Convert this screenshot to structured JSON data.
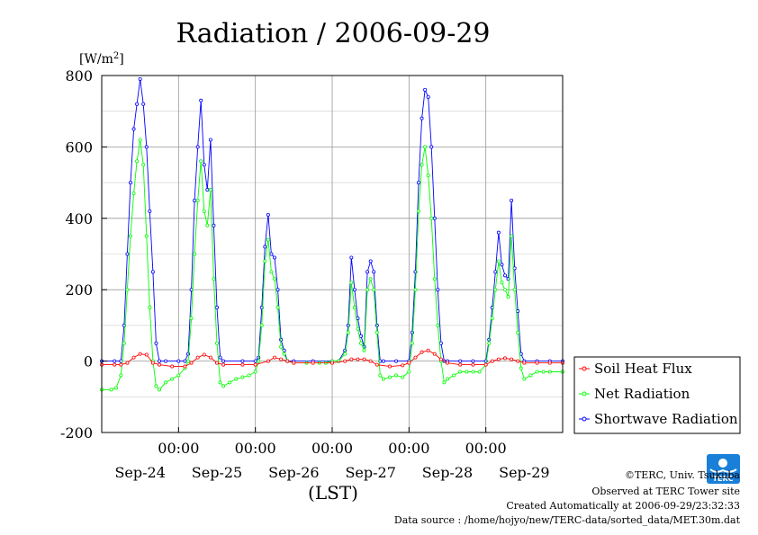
{
  "chart_data": {
    "type": "line",
    "title": "Radiation / 2006-09-29",
    "ylabel_unit_prefix": "[W/m",
    "ylabel_unit_sup": "2",
    "ylabel_unit_suffix": "]",
    "xlabel": "(LST)",
    "ylim": [
      -200,
      800
    ],
    "yticks": [
      -200,
      0,
      200,
      400,
      600,
      800
    ],
    "xlim": [
      0,
      144
    ],
    "xticks_hours": [
      24,
      48,
      72,
      96,
      120
    ],
    "xtick_time_label": "00:00",
    "date_labels": [
      {
        "x": 12,
        "label": "Sep-24"
      },
      {
        "x": 36,
        "label": "Sep-25"
      },
      {
        "x": 60,
        "label": "Sep-26"
      },
      {
        "x": 84,
        "label": "Sep-27"
      },
      {
        "x": 108,
        "label": "Sep-28"
      },
      {
        "x": 132,
        "label": "Sep-29"
      }
    ],
    "grid": true,
    "legend_position": "right",
    "series": [
      {
        "name": "Soil Heat Flux",
        "color": "#ff0000",
        "points": [
          [
            0,
            -10
          ],
          [
            4,
            -10
          ],
          [
            6,
            -10
          ],
          [
            8,
            -5
          ],
          [
            10,
            10
          ],
          [
            12,
            20
          ],
          [
            14,
            18
          ],
          [
            16,
            -5
          ],
          [
            18,
            -10
          ],
          [
            22,
            -15
          ],
          [
            26,
            -15
          ],
          [
            28,
            -5
          ],
          [
            30,
            10
          ],
          [
            32,
            18
          ],
          [
            34,
            10
          ],
          [
            36,
            -5
          ],
          [
            38,
            -10
          ],
          [
            44,
            -10
          ],
          [
            48,
            -10
          ],
          [
            52,
            0
          ],
          [
            54,
            10
          ],
          [
            56,
            5
          ],
          [
            58,
            0
          ],
          [
            60,
            -5
          ],
          [
            66,
            -5
          ],
          [
            72,
            -5
          ],
          [
            76,
            0
          ],
          [
            78,
            5
          ],
          [
            80,
            5
          ],
          [
            82,
            5
          ],
          [
            84,
            0
          ],
          [
            86,
            -10
          ],
          [
            90,
            -15
          ],
          [
            94,
            -12
          ],
          [
            96,
            -5
          ],
          [
            98,
            10
          ],
          [
            100,
            25
          ],
          [
            102,
            30
          ],
          [
            104,
            20
          ],
          [
            106,
            5
          ],
          [
            108,
            -5
          ],
          [
            112,
            -10
          ],
          [
            116,
            -10
          ],
          [
            120,
            -10
          ],
          [
            122,
            0
          ],
          [
            124,
            5
          ],
          [
            126,
            8
          ],
          [
            128,
            5
          ],
          [
            130,
            0
          ],
          [
            132,
            -5
          ],
          [
            136,
            -5
          ],
          [
            140,
            -5
          ],
          [
            144,
            -5
          ]
        ]
      },
      {
        "name": "Net Radiation",
        "color": "#00ff00",
        "points": [
          [
            0,
            -80
          ],
          [
            3,
            -80
          ],
          [
            4.5,
            -75
          ],
          [
            6,
            -40
          ],
          [
            7,
            50
          ],
          [
            8,
            200
          ],
          [
            9,
            350
          ],
          [
            10,
            470
          ],
          [
            11,
            560
          ],
          [
            12,
            620
          ],
          [
            13,
            550
          ],
          [
            14,
            350
          ],
          [
            15,
            150
          ],
          [
            16,
            0
          ],
          [
            17,
            -70
          ],
          [
            18,
            -80
          ],
          [
            20,
            -60
          ],
          [
            22,
            -50
          ],
          [
            24,
            -40
          ],
          [
            26,
            -20
          ],
          [
            27,
            0
          ],
          [
            28,
            120
          ],
          [
            29,
            300
          ],
          [
            30,
            450
          ],
          [
            31,
            560
          ],
          [
            32,
            420
          ],
          [
            33,
            380
          ],
          [
            34,
            480
          ],
          [
            35,
            230
          ],
          [
            36,
            50
          ],
          [
            37,
            -60
          ],
          [
            38,
            -70
          ],
          [
            40,
            -60
          ],
          [
            42,
            -50
          ],
          [
            44,
            -45
          ],
          [
            46,
            -40
          ],
          [
            48,
            -30
          ],
          [
            49,
            0
          ],
          [
            50,
            100
          ],
          [
            51,
            280
          ],
          [
            52,
            340
          ],
          [
            53,
            250
          ],
          [
            54,
            230
          ],
          [
            55,
            150
          ],
          [
            56,
            40
          ],
          [
            57,
            20
          ],
          [
            58,
            0
          ],
          [
            60,
            -5
          ],
          [
            64,
            -5
          ],
          [
            68,
            -5
          ],
          [
            70,
            -5
          ],
          [
            72,
            0
          ],
          [
            74,
            0
          ],
          [
            76,
            20
          ],
          [
            77,
            80
          ],
          [
            78,
            220
          ],
          [
            79,
            150
          ],
          [
            80,
            90
          ],
          [
            81,
            50
          ],
          [
            82,
            30
          ],
          [
            83,
            200
          ],
          [
            84,
            230
          ],
          [
            85,
            200
          ],
          [
            86,
            80
          ],
          [
            87,
            -40
          ],
          [
            88,
            -50
          ],
          [
            90,
            -45
          ],
          [
            92,
            -40
          ],
          [
            94,
            -45
          ],
          [
            96,
            -30
          ],
          [
            97,
            50
          ],
          [
            98,
            200
          ],
          [
            99,
            420
          ],
          [
            100,
            550
          ],
          [
            101,
            600
          ],
          [
            102,
            520
          ],
          [
            103,
            400
          ],
          [
            104,
            230
          ],
          [
            105,
            100
          ],
          [
            106,
            0
          ],
          [
            107,
            -60
          ],
          [
            108,
            -50
          ],
          [
            110,
            -40
          ],
          [
            112,
            -30
          ],
          [
            114,
            -30
          ],
          [
            116,
            -30
          ],
          [
            118,
            -30
          ],
          [
            120,
            -10
          ],
          [
            121,
            50
          ],
          [
            122,
            120
          ],
          [
            123,
            200
          ],
          [
            124,
            280
          ],
          [
            125,
            220
          ],
          [
            126,
            200
          ],
          [
            127,
            180
          ],
          [
            128,
            350
          ],
          [
            129,
            200
          ],
          [
            130,
            80
          ],
          [
            131,
            -20
          ],
          [
            132,
            -50
          ],
          [
            134,
            -40
          ],
          [
            136,
            -30
          ],
          [
            138,
            -30
          ],
          [
            140,
            -30
          ],
          [
            144,
            -30
          ]
        ]
      },
      {
        "name": "Shortwave Radiation",
        "color": "#0000ff",
        "points": [
          [
            0,
            0
          ],
          [
            4,
            0
          ],
          [
            6,
            0
          ],
          [
            7,
            100
          ],
          [
            8,
            300
          ],
          [
            9,
            500
          ],
          [
            10,
            650
          ],
          [
            11,
            720
          ],
          [
            12,
            790
          ],
          [
            13,
            720
          ],
          [
            14,
            600
          ],
          [
            15,
            420
          ],
          [
            16,
            250
          ],
          [
            17,
            50
          ],
          [
            18,
            0
          ],
          [
            20,
            0
          ],
          [
            24,
            0
          ],
          [
            26,
            0
          ],
          [
            27,
            20
          ],
          [
            28,
            200
          ],
          [
            29,
            450
          ],
          [
            30,
            600
          ],
          [
            31,
            730
          ],
          [
            32,
            550
          ],
          [
            33,
            480
          ],
          [
            34,
            620
          ],
          [
            35,
            380
          ],
          [
            36,
            150
          ],
          [
            37,
            10
          ],
          [
            38,
            0
          ],
          [
            44,
            0
          ],
          [
            48,
            0
          ],
          [
            49,
            10
          ],
          [
            50,
            150
          ],
          [
            51,
            320
          ],
          [
            52,
            410
          ],
          [
            53,
            300
          ],
          [
            54,
            290
          ],
          [
            55,
            200
          ],
          [
            56,
            60
          ],
          [
            57,
            30
          ],
          [
            58,
            0
          ],
          [
            60,
            0
          ],
          [
            66,
            0
          ],
          [
            72,
            0
          ],
          [
            74,
            0
          ],
          [
            76,
            30
          ],
          [
            77,
            100
          ],
          [
            78,
            290
          ],
          [
            79,
            200
          ],
          [
            80,
            120
          ],
          [
            81,
            70
          ],
          [
            82,
            40
          ],
          [
            83,
            250
          ],
          [
            84,
            280
          ],
          [
            85,
            250
          ],
          [
            86,
            100
          ],
          [
            87,
            0
          ],
          [
            88,
            0
          ],
          [
            92,
            0
          ],
          [
            96,
            0
          ],
          [
            97,
            80
          ],
          [
            98,
            250
          ],
          [
            99,
            500
          ],
          [
            100,
            680
          ],
          [
            101,
            760
          ],
          [
            102,
            740
          ],
          [
            103,
            600
          ],
          [
            104,
            400
          ],
          [
            105,
            200
          ],
          [
            106,
            50
          ],
          [
            107,
            0
          ],
          [
            108,
            0
          ],
          [
            112,
            0
          ],
          [
            116,
            0
          ],
          [
            120,
            0
          ],
          [
            121,
            60
          ],
          [
            122,
            150
          ],
          [
            123,
            250
          ],
          [
            124,
            360
          ],
          [
            125,
            270
          ],
          [
            126,
            240
          ],
          [
            127,
            230
          ],
          [
            128,
            450
          ],
          [
            129,
            260
          ],
          [
            130,
            140
          ],
          [
            131,
            20
          ],
          [
            132,
            0
          ],
          [
            136,
            0
          ],
          [
            140,
            0
          ],
          [
            144,
            0
          ]
        ]
      }
    ]
  },
  "footer": {
    "copyright": "©TERC, Univ. Tsukuba",
    "site": "Observed at TERC Tower site",
    "created": "Created Automatically at 2006-09-29/23:32:33",
    "source": "Data source : /home/hojyo/new/TERC-data/sorted_data/MET.30m.dat"
  },
  "logo": {
    "text": "TERC",
    "color": "#1a7fd8"
  }
}
